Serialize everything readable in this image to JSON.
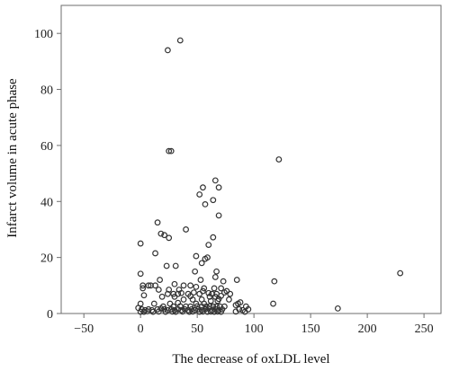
{
  "chart_data": {
    "type": "scatter",
    "title": "",
    "xlabel": "The decrease of oxLDL level",
    "ylabel": "Infarct volume in acute phase",
    "xlim": [
      -70,
      265
    ],
    "ylim": [
      0,
      110
    ],
    "x_ticks": [
      -50,
      0,
      50,
      100,
      150,
      200,
      250
    ],
    "y_ticks": [
      0,
      20,
      40,
      60,
      80,
      100
    ],
    "grid": false,
    "legend": "none",
    "marker": "open-circle",
    "colors": {
      "background": "#ffffff",
      "plot_area": "#ffffff",
      "frame": "#6e6e6e",
      "marker": "#333333"
    },
    "series": [
      {
        "points": [
          [
            24,
            94
          ],
          [
            35,
            97.5
          ],
          [
            25,
            58
          ],
          [
            27,
            58
          ],
          [
            122,
            55
          ],
          [
            66,
            47.5
          ],
          [
            55,
            45
          ],
          [
            69,
            45
          ],
          [
            52,
            42.5
          ],
          [
            64,
            40.5
          ],
          [
            57,
            39
          ],
          [
            69,
            35
          ],
          [
            15,
            32.5
          ],
          [
            40,
            30
          ],
          [
            18,
            28.5
          ],
          [
            21,
            28
          ],
          [
            25,
            27
          ],
          [
            64,
            27.2
          ],
          [
            0,
            25
          ],
          [
            60,
            24.5
          ],
          [
            13,
            21.5
          ],
          [
            49,
            20.5
          ],
          [
            59,
            20
          ],
          [
            57,
            19.5
          ],
          [
            54,
            18
          ],
          [
            31,
            17
          ],
          [
            23,
            17
          ],
          [
            48,
            15
          ],
          [
            67,
            15
          ],
          [
            0,
            14.2
          ],
          [
            229,
            14.4
          ],
          [
            66,
            13
          ],
          [
            53,
            12
          ],
          [
            17,
            12
          ],
          [
            118,
            11.5
          ],
          [
            73,
            11.5
          ],
          [
            85,
            12
          ],
          [
            2,
            10
          ],
          [
            7,
            10
          ],
          [
            9,
            10
          ],
          [
            13,
            10
          ],
          [
            30,
            10.5
          ],
          [
            38,
            10
          ],
          [
            44,
            10
          ],
          [
            49,
            9.5
          ],
          [
            56,
            9
          ],
          [
            65,
            9
          ],
          [
            71,
            9
          ],
          [
            2,
            9
          ],
          [
            16,
            8.5
          ],
          [
            25,
            8.5
          ],
          [
            34,
            8.5
          ],
          [
            55,
            8
          ],
          [
            76,
            8
          ],
          [
            24,
            7
          ],
          [
            29,
            7
          ],
          [
            33,
            7
          ],
          [
            36,
            7.3
          ],
          [
            42,
            7
          ],
          [
            47,
            7.5
          ],
          [
            52,
            7
          ],
          [
            60,
            7.3
          ],
          [
            63,
            7
          ],
          [
            67,
            7
          ],
          [
            74,
            7.5
          ],
          [
            79,
            7
          ],
          [
            3,
            6.5
          ],
          [
            19,
            6
          ],
          [
            30,
            6
          ],
          [
            44,
            6.2
          ],
          [
            61,
            6
          ],
          [
            66,
            6
          ],
          [
            71,
            6.3
          ],
          [
            38,
            5
          ],
          [
            46,
            5
          ],
          [
            54,
            5
          ],
          [
            69,
            5.2
          ],
          [
            78,
            5
          ],
          [
            62,
            4.5
          ],
          [
            68,
            4.5
          ],
          [
            88,
            4
          ],
          [
            0,
            3.5
          ],
          [
            12,
            3.5
          ],
          [
            26,
            3.5
          ],
          [
            33,
            3.8
          ],
          [
            49,
            3.5
          ],
          [
            56,
            3.5
          ],
          [
            84,
            3
          ],
          [
            86,
            3.5
          ],
          [
            117,
            3.5
          ],
          [
            20,
            2.5
          ],
          [
            29,
            2.5
          ],
          [
            35,
            2.6
          ],
          [
            40,
            2.5
          ],
          [
            44,
            2.5
          ],
          [
            50,
            2.6
          ],
          [
            54,
            2.5
          ],
          [
            58,
            2.5
          ],
          [
            61,
            2.6
          ],
          [
            64,
            2.5
          ],
          [
            67,
            2.5
          ],
          [
            70,
            2.5
          ],
          [
            74,
            2.5
          ],
          [
            93,
            2.5
          ],
          [
            174,
            1.8
          ],
          [
            -2,
            2
          ],
          [
            1,
            1.5
          ],
          [
            4,
            1.2
          ],
          [
            7,
            1.5
          ],
          [
            10,
            1.2
          ],
          [
            15,
            1.5
          ],
          [
            18,
            1.8
          ],
          [
            21,
            1.5
          ],
          [
            24,
            1.2
          ],
          [
            27,
            1.5
          ],
          [
            30,
            1.2
          ],
          [
            33,
            1.5
          ],
          [
            36,
            1.2
          ],
          [
            39,
            1.5
          ],
          [
            42,
            1.2
          ],
          [
            45,
            1.5
          ],
          [
            48,
            1.2
          ],
          [
            51,
            1.5
          ],
          [
            54,
            1.2
          ],
          [
            57,
            1.5
          ],
          [
            60,
            1.8
          ],
          [
            63,
            1.2
          ],
          [
            66,
            1.5
          ],
          [
            69,
            1.2
          ],
          [
            72,
            1.5
          ],
          [
            87,
            1.5
          ],
          [
            90,
            1.2
          ],
          [
            95,
            1.5
          ],
          [
            0,
            0.6
          ],
          [
            3,
            0.6
          ],
          [
            6,
            0.8
          ],
          [
            11,
            0.6
          ],
          [
            16,
            0.7
          ],
          [
            22,
            0.6
          ],
          [
            28,
            0.7
          ],
          [
            31,
            0.6
          ],
          [
            37,
            0.7
          ],
          [
            43,
            0.6
          ],
          [
            46,
            0.7
          ],
          [
            52,
            0.6
          ],
          [
            55,
            0.7
          ],
          [
            59,
            0.6
          ],
          [
            62,
            0.7
          ],
          [
            65,
            0.6
          ],
          [
            68,
            0.7
          ],
          [
            71,
            0.6
          ],
          [
            84,
            0.7
          ],
          [
            92,
            0.6
          ]
        ]
      }
    ]
  }
}
